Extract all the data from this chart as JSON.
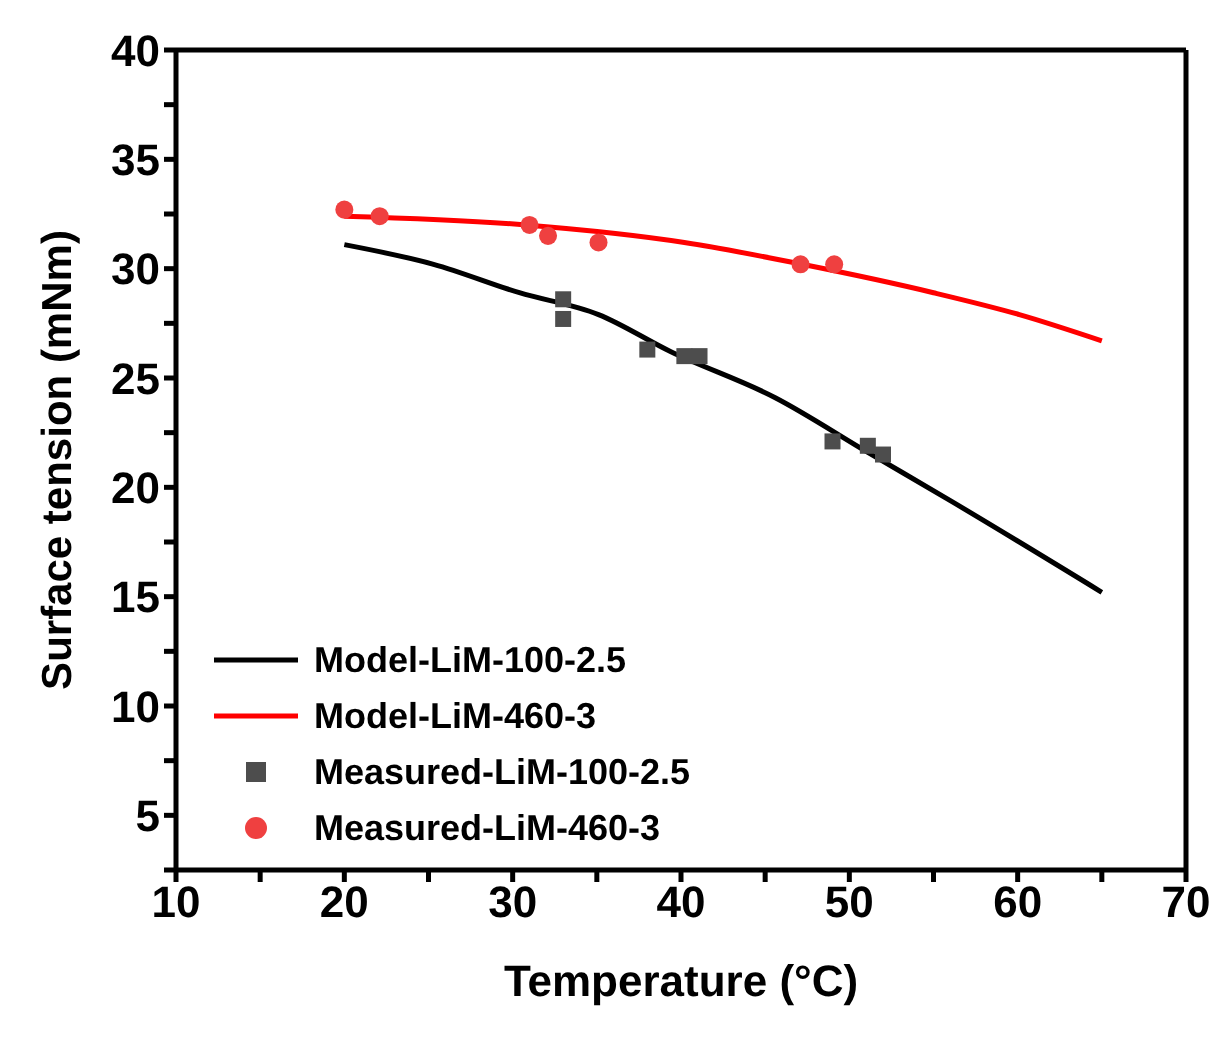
{
  "chart_data": {
    "type": "line",
    "xlabel": "Temperature (°C)",
    "ylabel": "Surface tension (mNm)",
    "xlim": [
      10,
      70
    ],
    "ylim": [
      2.5,
      40
    ],
    "xticks": [
      10,
      {
        "value": 15,
        "label": null
      },
      20,
      {
        "value": 25,
        "label": null
      },
      30,
      {
        "value": 35,
        "label": null
      },
      40,
      {
        "value": 45,
        "label": null
      },
      50,
      {
        "value": 55,
        "label": null
      },
      60,
      {
        "value": 65,
        "label": null
      },
      70
    ],
    "yticks": [
      {
        "value": 2.5,
        "label": null
      },
      5,
      {
        "value": 7.5,
        "label": null
      },
      10,
      {
        "value": 12.5,
        "label": null
      },
      15,
      {
        "value": 17.5,
        "label": null
      },
      20,
      {
        "value": 22.5,
        "label": null
      },
      25,
      {
        "value": 27.5,
        "label": null
      },
      30,
      {
        "value": 32.5,
        "label": null
      },
      35,
      {
        "value": 37.5,
        "label": null
      },
      40
    ],
    "legend": "bottom left",
    "grid": false,
    "series": [
      {
        "type": "line",
        "name": "Model-LiM-100-2.5",
        "color": "#000000",
        "marker": "none",
        "x": [
          20,
          25.3,
          30.4,
          35.1,
          39.4,
          45.6,
          51.1,
          56.2,
          65
        ],
        "values": [
          31.1,
          30.2,
          28.9,
          27.9,
          26.2,
          24.1,
          21.6,
          19.3,
          15.2
        ]
      },
      {
        "type": "line",
        "name": "Model-LiM-460-3",
        "color": "#ff0000",
        "marker": "none",
        "x": [
          20,
          30.8,
          40.2,
          47.2,
          55,
          60.1,
          65
        ],
        "values": [
          32.4,
          32.0,
          31.2,
          30.2,
          28.9,
          27.9,
          26.7
        ]
      },
      {
        "type": "scatter",
        "name": "Measured-LiM-100-2.5",
        "color": "#4d4d4d",
        "marker": "square",
        "x": [
          33,
          33,
          38,
          40.2,
          41.1,
          49,
          51.1,
          52
        ],
        "values": [
          28.6,
          27.7,
          26.3,
          26.0,
          26.0,
          22.1,
          21.9,
          21.5
        ]
      },
      {
        "type": "scatter",
        "name": "Measured-LiM-460-3",
        "color": "#ef4040",
        "marker": "circle",
        "x": [
          20,
          22.1,
          31,
          32.1,
          35.1,
          47.1,
          49.1
        ],
        "values": [
          32.7,
          32.4,
          32.0,
          31.5,
          31.2,
          30.2,
          30.2
        ]
      }
    ]
  }
}
